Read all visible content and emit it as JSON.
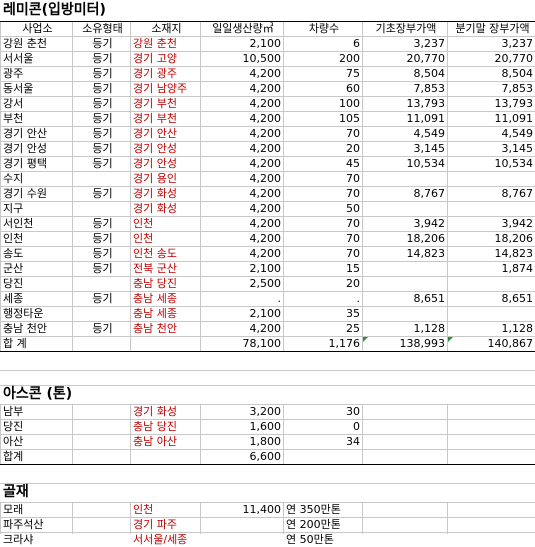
{
  "remicon": {
    "title": "레미콘(입방미터)",
    "headers": [
      "사업소",
      "소유형태",
      "소재지",
      "일일생산량㎥",
      "차량수",
      "기초장부가액",
      "분기말 장부가액"
    ],
    "rows": [
      {
        "office": "강원 춘천",
        "own": "등기",
        "loc": "강원 춘천",
        "daily": "2,100",
        "vehicles": "6",
        "begin": "3,237",
        "end": "3,237"
      },
      {
        "office": "서서울",
        "own": "등기",
        "loc": "경기 고양",
        "daily": "10,500",
        "vehicles": "200",
        "begin": "20,770",
        "end": "20,770"
      },
      {
        "office": "광주",
        "own": "등기",
        "loc": "경기 광주",
        "daily": "4,200",
        "vehicles": "75",
        "begin": "8,504",
        "end": "8,504"
      },
      {
        "office": "동서울",
        "own": "등기",
        "loc": "경기 남양주",
        "daily": "4,200",
        "vehicles": "60",
        "begin": "7,853",
        "end": "7,853"
      },
      {
        "office": "강서",
        "own": "등기",
        "loc": "경기 부천",
        "daily": "4,200",
        "vehicles": "100",
        "begin": "13,793",
        "end": "13,793"
      },
      {
        "office": "부천",
        "own": "등기",
        "loc": "경기 부천",
        "daily": "4,200",
        "vehicles": "105",
        "begin": "11,091",
        "end": "11,091"
      },
      {
        "office": "경기 안산",
        "own": "등기",
        "loc": "경기 안산",
        "daily": "4,200",
        "vehicles": "70",
        "begin": "4,549",
        "end": "4,549"
      },
      {
        "office": "경기 안성",
        "own": "등기",
        "loc": "경기 안성",
        "daily": "4,200",
        "vehicles": "20",
        "begin": "3,145",
        "end": "3,145"
      },
      {
        "office": "경기 평택",
        "own": "등기",
        "loc": "경기 안성",
        "daily": "4,200",
        "vehicles": "45",
        "begin": "10,534",
        "end": "10,534"
      },
      {
        "office": "수지",
        "own": "",
        "loc": "경기 용인",
        "daily": "4,200",
        "vehicles": "70",
        "begin": "",
        "end": ""
      },
      {
        "office": "경기 수원",
        "own": "등기",
        "loc": "경기 화성",
        "daily": "4,200",
        "vehicles": "70",
        "begin": "8,767",
        "end": "8,767"
      },
      {
        "office": "지구",
        "own": "",
        "loc": "경기 화성",
        "daily": "4,200",
        "vehicles": "50",
        "begin": "",
        "end": ""
      },
      {
        "office": "서인천",
        "own": "등기",
        "loc": "인천",
        "daily": "4,200",
        "vehicles": "70",
        "begin": "3,942",
        "end": "3,942"
      },
      {
        "office": "인천",
        "own": "등기",
        "loc": "인천",
        "daily": "4,200",
        "vehicles": "70",
        "begin": "18,206",
        "end": "18,206"
      },
      {
        "office": "송도",
        "own": "등기",
        "loc": "인천 송도",
        "daily": "4,200",
        "vehicles": "70",
        "begin": "14,823",
        "end": "14,823"
      },
      {
        "office": "군산",
        "own": "등기",
        "loc": "전북 군산",
        "daily": "2,100",
        "vehicles": "15",
        "begin": "",
        "end": "1,874"
      },
      {
        "office": "당진",
        "own": "",
        "loc": "충남 당진",
        "daily": "2,500",
        "vehicles": "20",
        "begin": "",
        "end": ""
      },
      {
        "office": "세종",
        "own": "등기",
        "loc": "충남 세종",
        "daily": ".",
        "vehicles": ".",
        "begin": "8,651",
        "end": "8,651"
      },
      {
        "office": "행정타운",
        "own": "",
        "loc": "충남 세종",
        "daily": "2,100",
        "vehicles": "35",
        "begin": "",
        "end": ""
      },
      {
        "office": "충남 천안",
        "own": "등기",
        "loc": "충남 천안",
        "daily": "4,200",
        "vehicles": "25",
        "begin": "1,128",
        "end": "1,128"
      }
    ],
    "total": {
      "label": "합 계",
      "daily": "78,100",
      "vehicles": "1,176",
      "begin": "138,993",
      "end": "140,867"
    }
  },
  "ascon": {
    "title": "아스콘 (톤)",
    "rows": [
      {
        "office": "남부",
        "loc": "경기 화성",
        "daily": "3,200",
        "vehicles": "30"
      },
      {
        "office": "당진",
        "loc": "충남 당진",
        "daily": "1,600",
        "vehicles": "0"
      },
      {
        "office": "아산",
        "loc": "충남 아산",
        "daily": "1,800",
        "vehicles": "34"
      }
    ],
    "total": {
      "label": "합계",
      "daily": "6,600"
    }
  },
  "aggregate": {
    "title": "골재",
    "rows": [
      {
        "name": "모래",
        "loc": "인천",
        "daily": "11,400",
        "note": "연 350만톤"
      },
      {
        "name": "파주석산",
        "loc": "경기 파주",
        "daily": "",
        "note": "연 200만톤"
      },
      {
        "name": "크라샤",
        "loc": "서서울/세종",
        "daily": "",
        "note": "연 50만톤"
      }
    ]
  },
  "colors": {
    "accent_text": "#c00000",
    "grid": "#c8c8c8",
    "border": "#000000",
    "error_marker": "#2e8b3a"
  }
}
